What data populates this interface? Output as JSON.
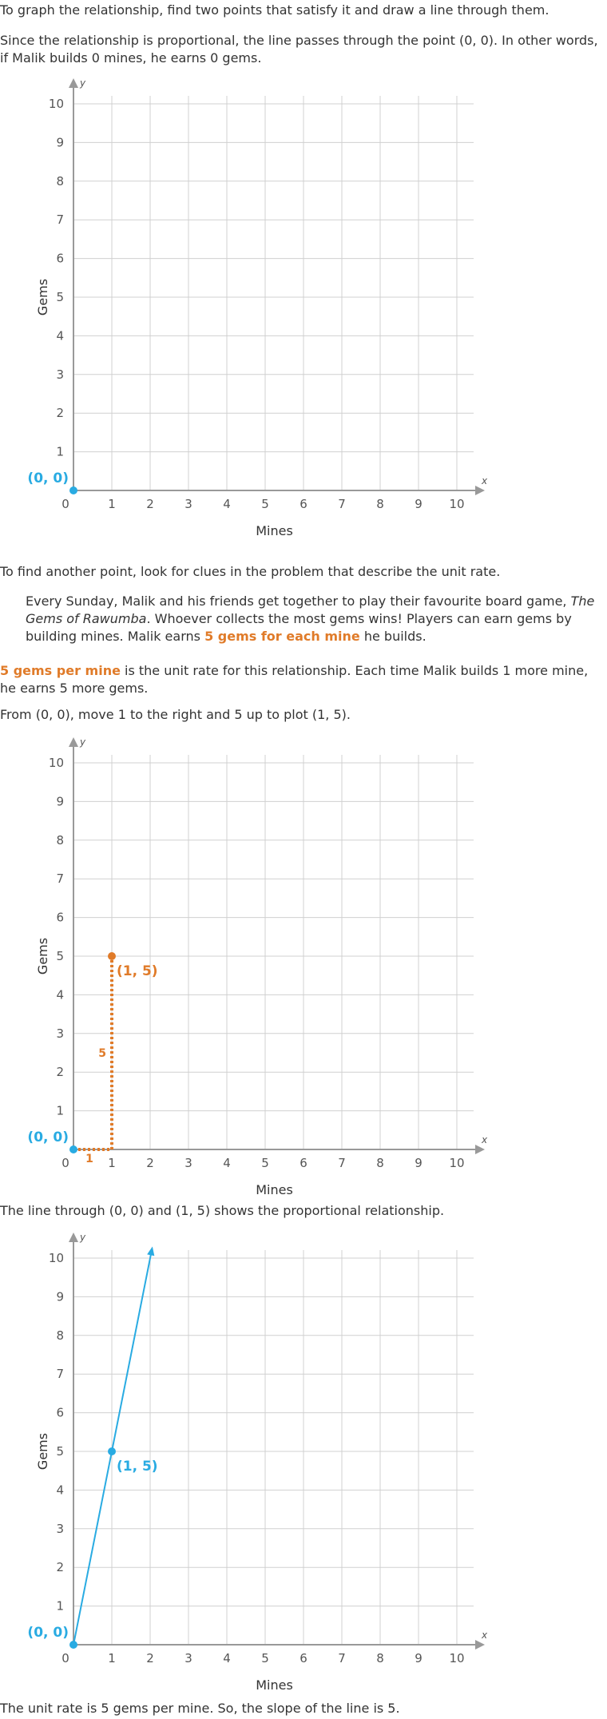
{
  "text": {
    "p1": "To graph the relationship, find two points that satisfy it and draw a line through them.",
    "p2": "Since the relationship is proportional, the line passes through the point (0, 0). In other words, if Malik builds 0 mines, he earns 0 gems.",
    "p3": "To find another point, look for clues in the problem that describe the unit rate.",
    "quote_a": "Every Sunday, Malik and his friends get together to play their favourite board game, ",
    "quote_title": "The Gems of Rawumba",
    "quote_b": ". Whoever collects the most gems wins! Players can earn gems by building mines. Malik earns ",
    "quote_highlight": "5 gems for each mine",
    "quote_c": " he builds.",
    "p5_highlight": "5 gems per mine",
    "p5_rest": " is the unit rate for this relationship. Each time Malik builds 1 more mine, he earns 5 more gems.",
    "p6": "From (0, 0), move 1 to the right and 5 up to plot (1, 5).",
    "p7": "The line through (0, 0) and (1, 5) shows the proportional relationship.",
    "p8": "The unit rate is 5 gems per mine. So, the slope of the line is 5."
  },
  "colors": {
    "blue": "#29abe2",
    "orange": "#e07b29",
    "grid": "#d0d0d0",
    "axis": "#999999"
  },
  "chart_data": [
    {
      "type": "scatter",
      "xlabel": "Mines",
      "ylabel": "Gems",
      "x_axis_name": "x",
      "y_axis_name": "y",
      "xlim": [
        0,
        10
      ],
      "ylim": [
        0,
        10
      ],
      "ticks": [
        0,
        1,
        2,
        3,
        4,
        5,
        6,
        7,
        8,
        9,
        10
      ],
      "grid": true,
      "points": [
        {
          "x": 0,
          "y": 0,
          "label": "(0, 0)",
          "color": "#29abe2"
        }
      ]
    },
    {
      "type": "scatter",
      "xlabel": "Mines",
      "ylabel": "Gems",
      "x_axis_name": "x",
      "y_axis_name": "y",
      "xlim": [
        0,
        10
      ],
      "ylim": [
        0,
        10
      ],
      "ticks": [
        0,
        1,
        2,
        3,
        4,
        5,
        6,
        7,
        8,
        9,
        10
      ],
      "grid": true,
      "points": [
        {
          "x": 0,
          "y": 0,
          "label": "(0, 0)",
          "color": "#29abe2"
        },
        {
          "x": 1,
          "y": 5,
          "label": "(1, 5)",
          "color": "#e07b29"
        }
      ],
      "steps": {
        "run": 1,
        "rise": 5,
        "run_label": "1",
        "rise_label": "5",
        "color": "#e07b29"
      }
    },
    {
      "type": "line",
      "xlabel": "Mines",
      "ylabel": "Gems",
      "x_axis_name": "x",
      "y_axis_name": "y",
      "xlim": [
        0,
        10
      ],
      "ylim": [
        0,
        10
      ],
      "ticks": [
        0,
        1,
        2,
        3,
        4,
        5,
        6,
        7,
        8,
        9,
        10
      ],
      "grid": true,
      "points": [
        {
          "x": 0,
          "y": 0,
          "label": "(0, 0)",
          "color": "#29abe2"
        },
        {
          "x": 1,
          "y": 5,
          "label": "(1, 5)",
          "color": "#29abe2"
        }
      ],
      "line": {
        "slope": 5,
        "intercept": 0,
        "x_end": 2.06,
        "color": "#29abe2"
      }
    }
  ]
}
